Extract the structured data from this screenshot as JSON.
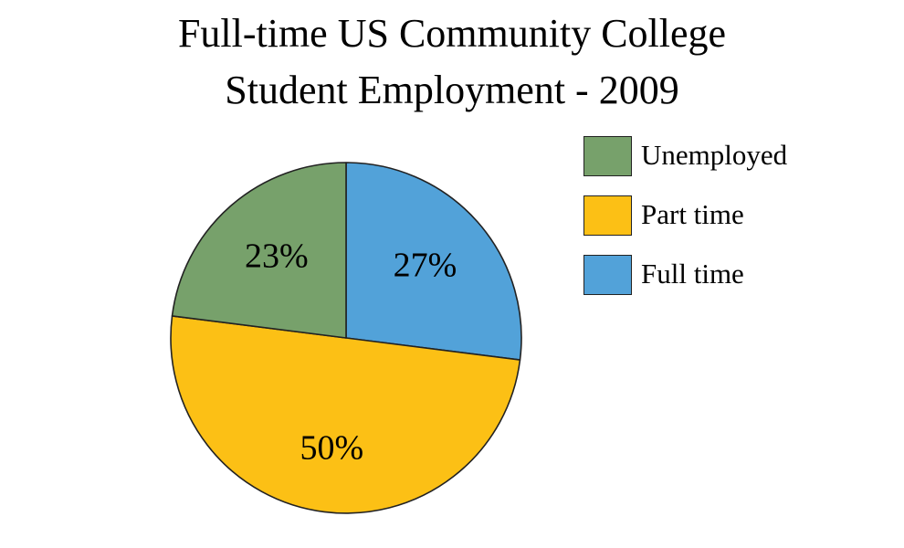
{
  "chart_data": {
    "type": "pie",
    "title": "Full-time US Community College Student Employment - 2009",
    "title_lines": [
      "Full-time US Community College",
      "Student Employment - 2009"
    ],
    "slices": [
      {
        "label": "Full time",
        "value": 27,
        "display": "27%",
        "color": "#52a2d9"
      },
      {
        "label": "Part time",
        "value": 50,
        "display": "50%",
        "color": "#fcc015"
      },
      {
        "label": "Unemployed",
        "value": 23,
        "display": "23%",
        "color": "#77a16b"
      }
    ],
    "legend": {
      "placement": "right",
      "order": [
        "Unemployed",
        "Part time",
        "Full time"
      ]
    },
    "start_angle": "12 o'clock, clockwise"
  }
}
